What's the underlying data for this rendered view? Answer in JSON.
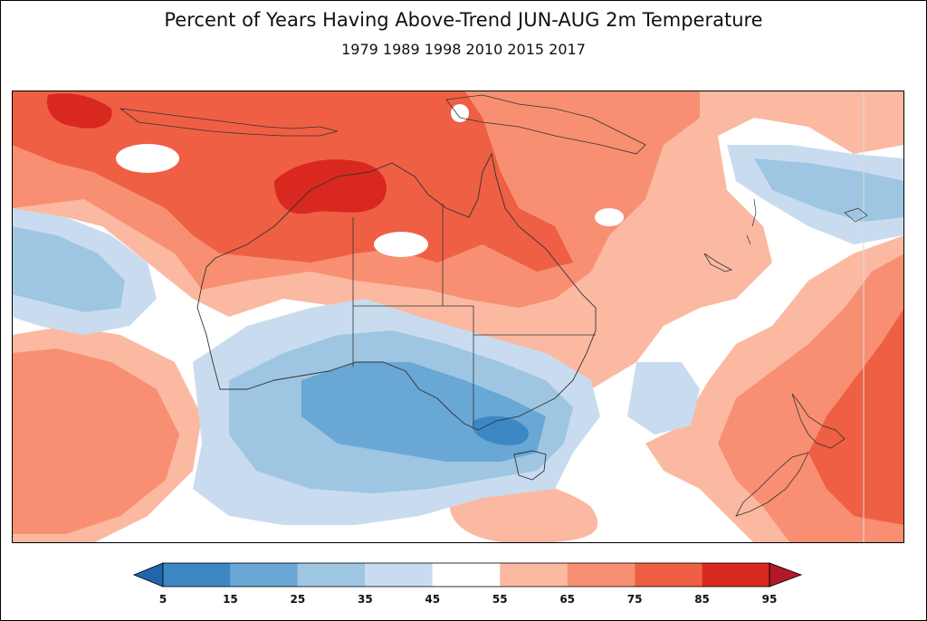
{
  "title": "Percent of Years Having Above-Trend JUN-AUG 2m Temperature",
  "subtitle": "1979 1989 1998 2010 2015 2017",
  "colorbar": {
    "ticks": [
      "5",
      "15",
      "25",
      "35",
      "45",
      "55",
      "65",
      "75",
      "85",
      "95"
    ],
    "colors": [
      "#3b88c4",
      "#69a7d4",
      "#9ec6e2",
      "#c9dcef",
      "#ffffff",
      "#fbb9a2",
      "#f88f72",
      "#ef5f44",
      "#d9281f"
    ],
    "under_color": "#2166ac",
    "over_color": "#b2182b"
  }
}
